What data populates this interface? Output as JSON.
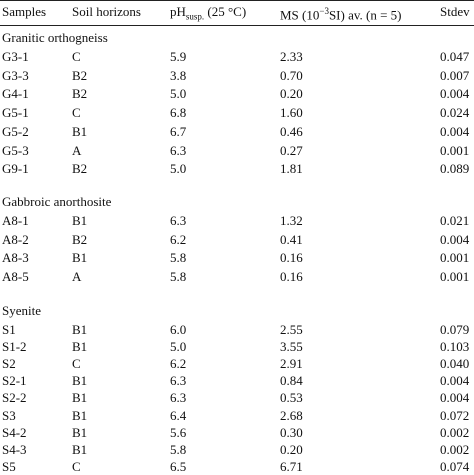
{
  "header": {
    "samples": "Samples",
    "soil": "Soil horizons",
    "ph": "pH",
    "ph_sub": "susp.",
    "ph_rest": "(25 °C)",
    "ms": "MS (10",
    "ms_sup": "−3",
    "ms_rest": "SI) av. (n = 5)",
    "stdev": "Stdev"
  },
  "sections": [
    {
      "name": "Granitic orthogneiss",
      "rows": [
        [
          "G3-1",
          "C",
          "5.9",
          "2.33",
          "0.047"
        ],
        [
          "G3-3",
          "B2",
          "3.8",
          "0.70",
          "0.007"
        ],
        [
          "G4-1",
          "B2",
          "5.0",
          "0.20",
          "0.004"
        ],
        [
          "G5-1",
          "C",
          "6.8",
          "1.60",
          "0.024"
        ],
        [
          "G5-2",
          "B1",
          "6.7",
          "0.46",
          "0.004"
        ],
        [
          "G5-3",
          "A",
          "6.3",
          "0.27",
          "0.001"
        ],
        [
          "G9-1",
          "B2",
          "5.0",
          "1.81",
          "0.089"
        ]
      ]
    },
    {
      "name": "Gabbroic anorthosite",
      "rows": [
        [
          "A8-1",
          "B1",
          "6.3",
          "1.32",
          "0.021"
        ],
        [
          "A8-2",
          "B2",
          "6.2",
          "0.41",
          "0.004"
        ],
        [
          "A8-3",
          "B1",
          "5.8",
          "0.16",
          "0.001"
        ],
        [
          "A8-5",
          "A",
          "5.8",
          "0.16",
          "0.001"
        ]
      ]
    },
    {
      "name": "Syenite",
      "rows": [
        [
          "S1",
          "B1",
          "6.0",
          "2.55",
          "0.079"
        ],
        [
          "S1-2",
          "B1",
          "5.0",
          "3.55",
          "0.103"
        ],
        [
          "S2",
          "C",
          "6.2",
          "2.91",
          "0.040"
        ],
        [
          "S2-1",
          "B1",
          "6.3",
          "0.84",
          "0.004"
        ],
        [
          "S2-2",
          "B1",
          "6.3",
          "0.53",
          "0.004"
        ],
        [
          "S3",
          "B1",
          "6.4",
          "2.68",
          "0.072"
        ],
        [
          "S4-2",
          "B1",
          "5.6",
          "0.30",
          "0.002"
        ],
        [
          "S4-3",
          "B1",
          "5.8",
          "0.20",
          "0.002"
        ],
        [
          "S5",
          "C",
          "6.5",
          "6.71",
          "0.074"
        ]
      ]
    }
  ]
}
